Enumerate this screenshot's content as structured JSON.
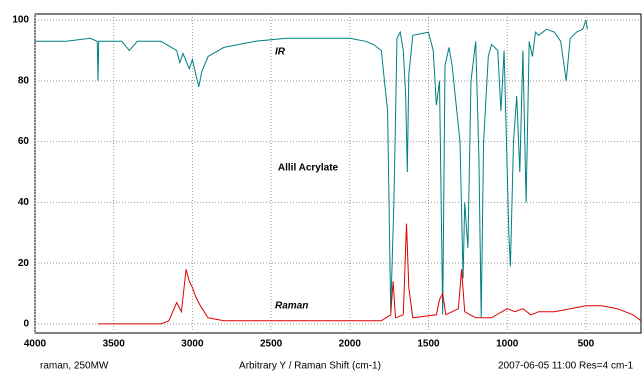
{
  "chart_data": {
    "type": "line",
    "title": "Allil Acrylate",
    "annotations": [
      "IR",
      "Raman"
    ],
    "footer_left": "raman, 250MW",
    "x_label": "Arbitrary Y / Raman Shift (cm-1)",
    "footer_right": "2007-06-05  11:00  Res=4 cm-1",
    "xlim": [
      4000,
      150
    ],
    "ylim": [
      -3,
      102
    ],
    "xticks": [
      4000,
      3500,
      3000,
      2500,
      2000,
      1500,
      1000,
      500
    ],
    "yticks": [
      0,
      20,
      40,
      60,
      80,
      100
    ],
    "grid": true,
    "series": [
      {
        "name": "IR",
        "color": "#008080",
        "x": [
          4000,
          3800,
          3650,
          3605,
          3600,
          3595,
          3450,
          3400,
          3350,
          3200,
          3100,
          3080,
          3060,
          3020,
          3000,
          2960,
          2940,
          2900,
          2800,
          2600,
          2400,
          2200,
          2000,
          1900,
          1850,
          1800,
          1760,
          1740,
          1720,
          1700,
          1680,
          1660,
          1645,
          1635,
          1625,
          1600,
          1500,
          1470,
          1450,
          1430,
          1410,
          1395,
          1370,
          1350,
          1300,
          1280,
          1270,
          1250,
          1230,
          1200,
          1180,
          1165,
          1150,
          1120,
          1100,
          1060,
          1040,
          1020,
          990,
          980,
          960,
          940,
          920,
          900,
          880,
          860,
          840,
          820,
          800,
          750,
          700,
          660,
          625,
          600,
          560,
          520,
          500,
          490
        ],
        "values": [
          93,
          93,
          94,
          93,
          80,
          93,
          93,
          90,
          93,
          93,
          90,
          86,
          89,
          84,
          87,
          78,
          83,
          88,
          91,
          93,
          94,
          94,
          94,
          93,
          92,
          90,
          70,
          4,
          40,
          94,
          96,
          90,
          75,
          50,
          82,
          95,
          96,
          90,
          72,
          80,
          3,
          85,
          91,
          85,
          60,
          15,
          40,
          25,
          80,
          93,
          55,
          2,
          60,
          88,
          92,
          90,
          70,
          90,
          30,
          19,
          60,
          75,
          50,
          90,
          40,
          93,
          88,
          96,
          95,
          97,
          96,
          93,
          80,
          94,
          96,
          97,
          100,
          97
        ]
      },
      {
        "name": "Raman",
        "color": "#e00000",
        "x": [
          3600,
          3200,
          3150,
          3100,
          3070,
          3040,
          3020,
          3000,
          2980,
          2950,
          2900,
          2800,
          2000,
          1800,
          1740,
          1725,
          1710,
          1660,
          1640,
          1625,
          1600,
          1450,
          1430,
          1410,
          1390,
          1310,
          1290,
          1270,
          1200,
          1100,
          1000,
          950,
          900,
          850,
          800,
          700,
          600,
          500,
          400,
          300,
          200,
          150
        ],
        "values": [
          0,
          0,
          1,
          7,
          4,
          18,
          14,
          12,
          9,
          6,
          2,
          1,
          1,
          1,
          3,
          14,
          2,
          3,
          33,
          12,
          2,
          3,
          8,
          10,
          3,
          5,
          18,
          4,
          2,
          2,
          5,
          4,
          5,
          3,
          4,
          4,
          5,
          6,
          6,
          5,
          3,
          1
        ]
      }
    ]
  }
}
